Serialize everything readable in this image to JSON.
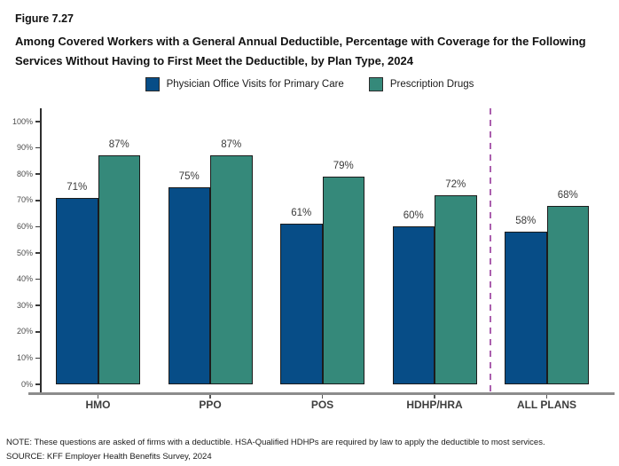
{
  "header": {
    "figure_label": "Figure 7.27",
    "title": "Among Covered Workers with a General Annual Deductible, Percentage with Coverage for the Following Services Without Having to First Meet the Deductible, by Plan Type, 2024"
  },
  "legend": {
    "items": [
      {
        "label": "Physician Office Visits for Primary Care",
        "color": "#074d87"
      },
      {
        "label": "Prescription Drugs",
        "color": "#35897a"
      }
    ]
  },
  "chart_data": {
    "type": "bar",
    "title": "Among Covered Workers with a General Annual Deductible, Percentage with Coverage for the Following Services Without Having to First Meet the Deductible, by Plan Type, 2024",
    "categories": [
      "HMO",
      "PPO",
      "POS",
      "HDHP/HRA",
      "ALL PLANS"
    ],
    "series": [
      {
        "name": "Physician Office Visits for Primary Care",
        "color": "#074d87",
        "values": [
          71,
          75,
          61,
          60,
          58
        ]
      },
      {
        "name": "Prescription Drugs",
        "color": "#35897a",
        "values": [
          87,
          87,
          79,
          72,
          68
        ]
      }
    ],
    "value_suffix": "%",
    "xlabel": "",
    "ylabel": "",
    "ylim": [
      0,
      100
    ],
    "ytick_step": 10,
    "ytick_suffix": "%",
    "grid": false,
    "legend_position": "top",
    "separator": {
      "after_category": "HDHP/HRA",
      "style": "dashed",
      "color": "#ab5fae"
    },
    "bar_border_color": "#1c1c1c"
  },
  "notes": {
    "note": "NOTE: These questions are asked of firms with a deductible. HSA-Qualified HDHPs are required by law to apply the deductible to most services.",
    "source": "SOURCE: KFF Employer Health Benefits Survey, 2024"
  }
}
